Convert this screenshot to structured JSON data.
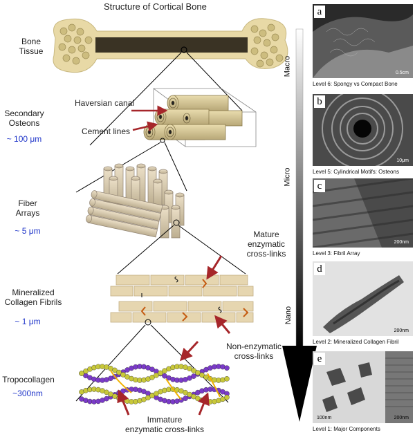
{
  "title": "Structure of Cortical Bone",
  "levels": [
    {
      "name": "Bone\nTissue",
      "size": ""
    },
    {
      "name": "Secondary\nOsteons",
      "size": "~ 100 μm"
    },
    {
      "name": "Fiber\nArrays",
      "size": "~ 5 μm"
    },
    {
      "name": "Mineralized\nCollagen Fibrils",
      "size": "~ 1 μm"
    },
    {
      "name": "Tropocollagen",
      "size": "~300nm"
    }
  ],
  "callouts": {
    "haversian": "Haversian canal",
    "cement": "Cement lines",
    "mature": "Mature\nenzymatic\ncross-links",
    "nonenz": "Non-enzymatic\ncross-links",
    "immature": "Immature\nenzymatic cross-links"
  },
  "scale": {
    "macro": "Macro",
    "micro": "Micro",
    "nano": "Nano"
  },
  "panels": [
    {
      "letter": "a",
      "caption": "Level 6: Spongy vs Compact Bone",
      "scale": "0.5cm"
    },
    {
      "letter": "b",
      "caption": "Level 5: Cylindrical Motifs: Osteons",
      "scale": "10μm"
    },
    {
      "letter": "c",
      "caption": "Level 3: Fibril Array",
      "scale": "200nm"
    },
    {
      "letter": "d",
      "caption": "Level 2: Mineralized Collagen Fibril",
      "scale": "200nm"
    },
    {
      "letter": "e",
      "caption": "Level 1: Major Components",
      "scale": "100nm",
      "scale2": "200nm"
    }
  ],
  "colors": {
    "bone": "#e8d9a6",
    "fiber": "#d9c9a8",
    "arrow": "#a6262a",
    "blue": "#1f35c9"
  }
}
